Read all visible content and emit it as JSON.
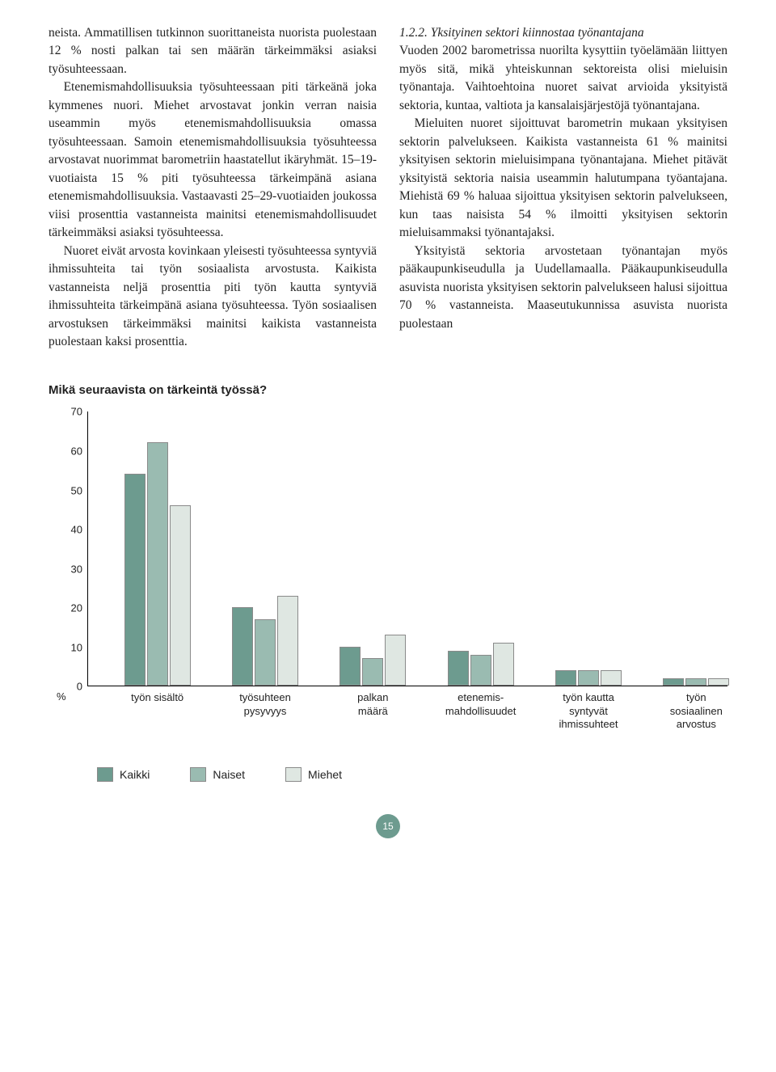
{
  "text": {
    "left_col_p1": "neista. Ammatillisen tutkinnon suorittaneista nuorista puolestaan 12 % nosti palkan tai sen määrän tärkeimmäksi asiaksi työsuhteessaan.",
    "left_col_p2": "Etenemismahdollisuuksia työsuhteessaan piti tärkeänä joka kymmenes nuori. Miehet arvostavat jonkin verran naisia useammin myös etenemismahdollisuuksia omassa työsuhteessaan. Samoin etenemismahdollisuuksia työsuhteessa arvostavat nuorimmat barometriin haastatellut ikäryhmät. 15–19-vuotiaista 15 % piti työsuhteessa tärkeimpänä asiana etenemismahdollisuuksia. Vastaavasti 25–29-vuotiaiden joukossa viisi prosenttia vastanneista mainitsi etenemismahdollisuudet tärkeimmäksi asiaksi työsuhteessa.",
    "left_col_p3": "Nuoret eivät arvosta kovinkaan yleisesti työsuhteessa syntyviä ihmissuhteita tai työn sosiaalista arvostusta. Kaikista vastanneista neljä prosenttia piti työn kautta syntyviä ihmissuhteita tärkeimpänä asiana työsuhteessa. Työn sosiaalisen arvostuksen tärkeimmäksi mainitsi kaikista vastanneista puolestaan kaksi prosenttia.",
    "right_head": "1.2.2. Yksityinen sektori kiinnostaa työnantajana",
    "right_col_p1": "Vuoden 2002 barometrissa nuorilta kysyttiin työelämään liittyen myös sitä, mikä yhteiskunnan sektoreista olisi mieluisin työnantaja. Vaihtoehtoina nuoret saivat arvioida yksityistä sektoria, kuntaa, valtiota ja kansalaisjärjestöjä työnantajana.",
    "right_col_p2": "Mieluiten nuoret sijoittuvat barometrin mukaan yksityisen sektorin palvelukseen. Kaikista vastanneista 61 % mainitsi yksityisen sektorin mieluisimpana työnantajana. Miehet pitävät yksityistä sektoria naisia useammin halutumpana työantajana. Miehistä 69 % haluaa sijoittua yksityisen sektorin palvelukseen, kun taas naisista 54 % ilmoitti yksityisen sektorin mieluisammaksi työnantajaksi.",
    "right_col_p3": "Yksityistä sektoria arvostetaan työnantajan myös pääkaupunkiseudulla ja Uudellamaalla. Pääkaupunkiseudulla asuvista nuorista yksityisen sektorin palvelukseen halusi sijoittua 70 % vastanneista. Maaseutukunnissa asuvista nuorista puolestaan"
  },
  "chart": {
    "title": "Mikä seuraavista on tärkeintä työssä?",
    "type": "bar",
    "y_max": 70,
    "y_ticks": [
      0,
      10,
      20,
      30,
      40,
      50,
      60,
      70
    ],
    "pct_label": "%",
    "categories": [
      "työn sisältö",
      "työsuhteen\npysyvyys",
      "palkan\nmäärä",
      "etenemis-\nmahdollisuudet",
      "työn kautta\nsyntyvät\nihmissuhteet",
      "työn\nsosiaalinen\narvostus"
    ],
    "series": [
      {
        "name": "Kaikki",
        "color": "#6d9b8f",
        "values": [
          54,
          20,
          10,
          9,
          4,
          2
        ]
      },
      {
        "name": "Naiset",
        "color": "#9abbb1",
        "values": [
          62,
          17,
          7,
          8,
          4,
          2
        ]
      },
      {
        "name": "Miehet",
        "color": "#dfe7e2",
        "values": [
          46,
          23,
          13,
          11,
          4,
          2
        ]
      }
    ],
    "border_color": "#8a8a8a",
    "background_color": "#ffffff"
  },
  "page": {
    "number": "15",
    "badge_color": "#6d9b8f"
  }
}
